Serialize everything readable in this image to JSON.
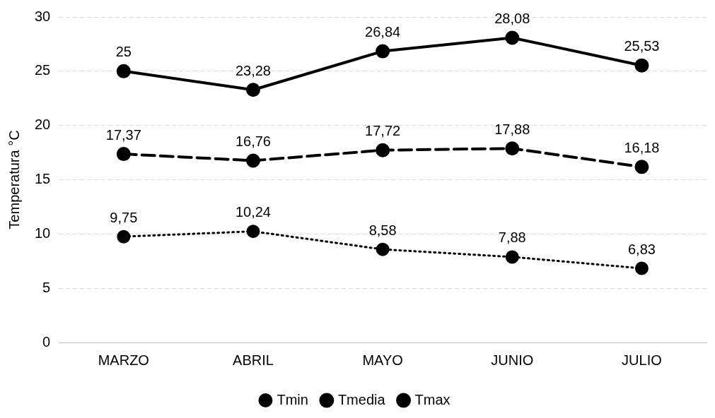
{
  "chart_data": {
    "type": "line",
    "ylabel": "Temperatura °C",
    "categories": [
      "MARZO",
      "ABRIL",
      "MAYO",
      "JUNIO",
      "JULIO"
    ],
    "series": [
      {
        "name": "Tmin",
        "color": "#000000",
        "line_style": "dotted",
        "values": [
          9.75,
          10.24,
          8.58,
          7.88,
          6.83
        ],
        "value_labels": [
          "9,75",
          "10,24",
          "8,58",
          "7,88",
          "6,83"
        ]
      },
      {
        "name": "Tmedia",
        "color": "#000000",
        "line_style": "dashed",
        "values": [
          17.37,
          16.76,
          17.72,
          17.88,
          16.18
        ],
        "value_labels": [
          "17,37",
          "16,76",
          "17,72",
          "17,88",
          "16,18"
        ]
      },
      {
        "name": "Tmax",
        "color": "#000000",
        "line_style": "solid",
        "values": [
          25,
          23.28,
          26.84,
          28.08,
          25.53
        ],
        "value_labels": [
          "25",
          "23,28",
          "26,84",
          "28,08",
          "25,53"
        ]
      }
    ],
    "ylim": [
      0,
      30
    ],
    "yticks": [
      0,
      5,
      10,
      15,
      20,
      25,
      30
    ],
    "grid": "y",
    "legend": "bottom",
    "marker": "circle"
  }
}
